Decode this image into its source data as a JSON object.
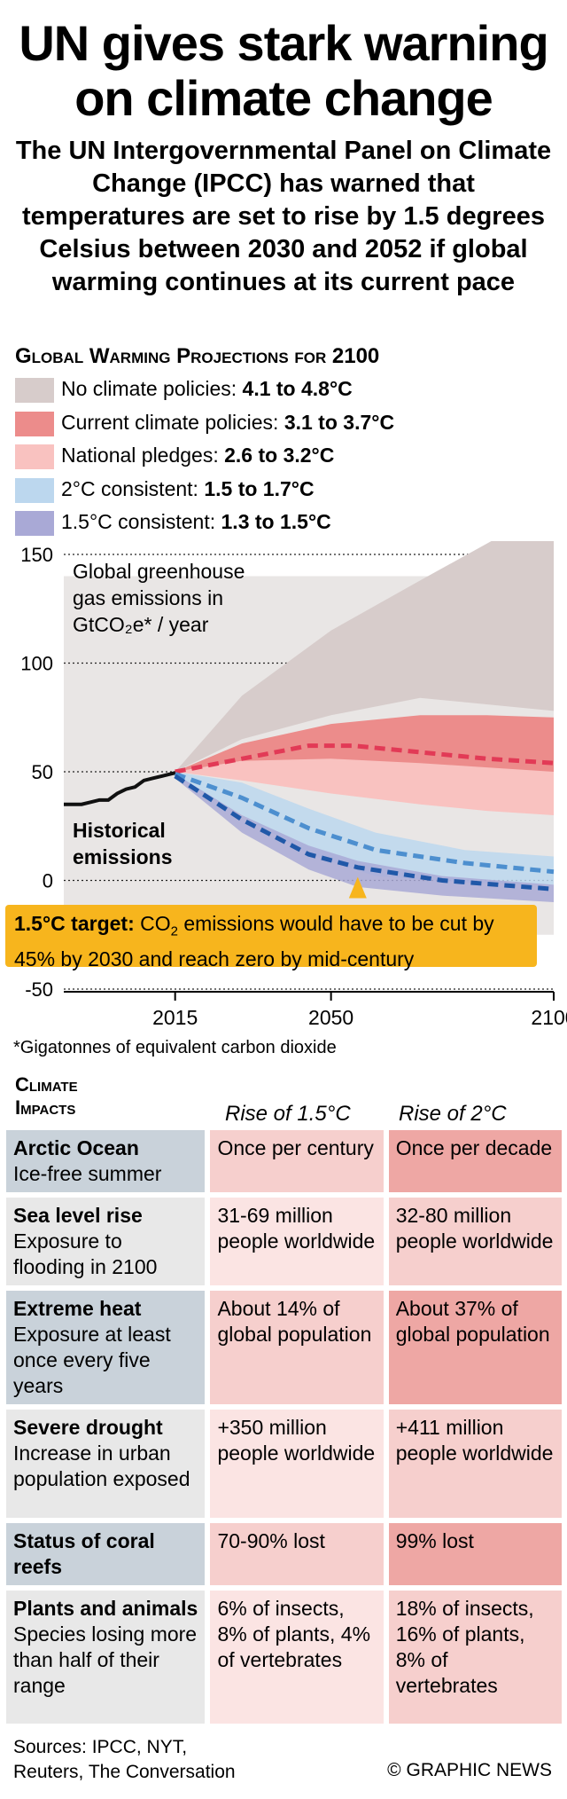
{
  "title": "UN gives stark warning on climate change",
  "subtitle": "The UN Intergovernmental Panel on Climate Change (IPCC) has warned that temperatures are set to rise by 1.5 degrees Celsius between 2030 and 2052 if global warming continues at its current pace",
  "projections_title": "Global Warming Projections for 2100",
  "legend": [
    {
      "label": "No climate policies:",
      "range": "4.1 to 4.8°C",
      "color": "#d7cccb"
    },
    {
      "label": "Current climate policies:",
      "range": "3.1 to 3.7°C",
      "color": "#ec8c8b"
    },
    {
      "label": "National pledges:",
      "range": "2.6 to 3.2°C",
      "color": "#f9c2c0"
    },
    {
      "label": "2°C consistent:",
      "range": "1.5 to 1.7°C",
      "color": "#bcd7ee"
    },
    {
      "label": "1.5°C consistent:",
      "range": "1.3 to 1.5°C",
      "color": "#a9a9d6"
    }
  ],
  "chart_data": {
    "type": "area",
    "y_annotation_1": "Global greenhouse",
    "y_annotation_2": "gas emissions in",
    "y_annotation_3": "GtCO₂e* / year",
    "ylim": [
      -50,
      150
    ],
    "yticks": [
      "150",
      "100",
      "50",
      "0",
      "-50"
    ],
    "xlim": [
      1990,
      2100
    ],
    "xticks": [
      "2015",
      "2050",
      "2100"
    ],
    "historical_label_1": "Historical",
    "historical_label_2": "emissions",
    "historical": {
      "x": [
        1990,
        1992,
        1994,
        1996,
        1998,
        2000,
        2002,
        2004,
        2006,
        2008,
        2010,
        2012,
        2014,
        2016
      ],
      "y": [
        35,
        35,
        35,
        36,
        37,
        37,
        40,
        42,
        43,
        46,
        47,
        48,
        49,
        50
      ]
    },
    "bands": [
      {
        "name": "No climate policies",
        "x": [
          2015,
          2030,
          2050,
          2070,
          2100
        ],
        "lower": [
          50,
          65,
          76,
          84,
          78
        ],
        "upper": [
          50,
          85,
          115,
          138,
          172
        ]
      },
      {
        "name": "Current climate policies",
        "x": [
          2015,
          2030,
          2050,
          2070,
          2085,
          2100
        ],
        "lower": [
          50,
          55,
          52,
          50,
          49,
          48
        ],
        "upper": [
          50,
          63,
          72,
          76,
          76,
          75
        ]
      },
      {
        "name": "National pledges",
        "x": [
          2015,
          2030,
          2050,
          2070,
          2085,
          2100
        ],
        "lower": [
          50,
          46,
          40,
          35,
          32,
          30
        ],
        "upper": [
          50,
          55,
          56,
          54,
          52,
          50
        ]
      },
      {
        "name": "2°C consistent",
        "x": [
          2015,
          2030,
          2045,
          2060,
          2080,
          2100
        ],
        "lower": [
          48,
          30,
          12,
          2,
          -1,
          -2
        ],
        "upper": [
          50,
          45,
          33,
          22,
          14,
          11
        ]
      },
      {
        "name": "1.5°C consistent",
        "x": [
          2015,
          2030,
          2045,
          2056,
          2075,
          2100
        ],
        "lower": [
          47,
          22,
          5,
          -3,
          -7,
          -10
        ],
        "upper": [
          49,
          30,
          16,
          9,
          2,
          -2
        ]
      }
    ],
    "medians": [
      {
        "name": "Current climate policies",
        "color": "#e23a56",
        "x": [
          2015,
          2030,
          2045,
          2055,
          2070,
          2085,
          2100
        ],
        "y": [
          50,
          56,
          62,
          62,
          59,
          56,
          54
        ]
      },
      {
        "name": "2°C consistent",
        "color": "#4d8fcf",
        "x": [
          2015,
          2030,
          2045,
          2060,
          2080,
          2100
        ],
        "y": [
          49,
          38,
          24,
          14,
          8,
          4
        ]
      },
      {
        "name": "1.5°C consistent",
        "color": "#2058a8",
        "x": [
          2015,
          2030,
          2045,
          2056,
          2075,
          2100
        ],
        "y": [
          48,
          28,
          12,
          6,
          0,
          -4
        ]
      }
    ]
  },
  "callout": {
    "bold": "1.5°C target:",
    "text1": " CO",
    "sub": "2",
    "text2": " emissions would have to be cut by 45% by 2030 and reach zero by mid-century"
  },
  "footnote": "*Gigatonnes of equivalent carbon dioxide",
  "impacts": {
    "title_1": "Climate",
    "title_2": "Impacts",
    "col_15": "Rise of 1.5°C",
    "col_2": "Rise of 2°C",
    "rows": [
      {
        "name": "Arctic Ocean",
        "desc": "Ice-free summer",
        "v15": "Once per century",
        "v2": "Once per decade"
      },
      {
        "name": "Sea level rise",
        "desc": "Exposure to flooding in 2100",
        "v15": "31-69 million people worldwide",
        "v2": "32-80 million people worldwide"
      },
      {
        "name": "Extreme heat",
        "desc": "Exposure at least once every five years",
        "v15": "About 14% of global population",
        "v2": "About 37% of global population"
      },
      {
        "name": "Severe drought",
        "desc": "Increase in urban population exposed",
        "v15": "+350 million people worldwide",
        "v2": "+411 million people worldwide"
      },
      {
        "name": "Status of coral reefs",
        "desc": "",
        "v15": "70-90% lost",
        "v2": "99% lost"
      },
      {
        "name": "Plants and animals",
        "desc": "Species losing more than half of their range",
        "v15": "6% of insects, 8% of plants, 4% of vertebrates",
        "v2": "18% of insects, 16% of plants, 8% of vertebrates"
      }
    ]
  },
  "sources_1": "Sources: IPCC, NYT,",
  "sources_2": "Reuters, The Conversation",
  "credit": "© GRAPHIC NEWS"
}
